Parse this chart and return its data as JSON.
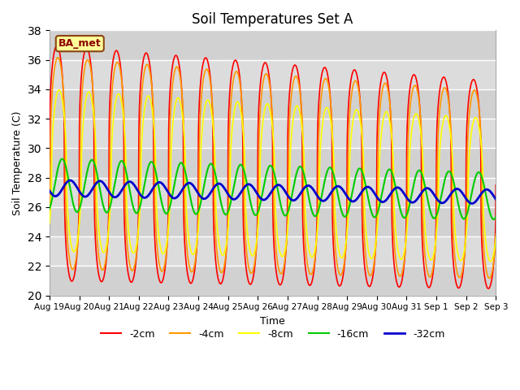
{
  "title": "Soil Temperatures Set A",
  "xlabel": "Time",
  "ylabel": "Soil Temperature (C)",
  "ylim": [
    20,
    38
  ],
  "yticks": [
    20,
    22,
    24,
    26,
    28,
    30,
    32,
    34,
    36,
    38
  ],
  "background_color": "#ffffff",
  "plot_bg_color": "#dcdcdc",
  "label_text": "BA_met",
  "series": [
    {
      "label": "-2cm",
      "color": "#ff0000",
      "lw": 1.2,
      "amplitude": 8.0,
      "mean": 29.0,
      "phase_shift": 0.0,
      "trend": -0.1,
      "sharpness": 3.0
    },
    {
      "label": "-4cm",
      "color": "#ff9900",
      "lw": 1.2,
      "amplitude": 7.2,
      "mean": 29.0,
      "phase_shift": 0.2,
      "trend": -0.1,
      "sharpness": 2.5
    },
    {
      "label": "-8cm",
      "color": "#ffff00",
      "lw": 1.2,
      "amplitude": 5.5,
      "mean": 28.5,
      "phase_shift": 0.45,
      "trend": -0.09,
      "sharpness": 2.0
    },
    {
      "label": "-16cm",
      "color": "#00cc00",
      "lw": 1.5,
      "amplitude": 1.8,
      "mean": 27.5,
      "phase_shift": 1.1,
      "trend": -0.05,
      "sharpness": 1.0
    },
    {
      "label": "-32cm",
      "color": "#0000cc",
      "lw": 2.0,
      "amplitude": 0.55,
      "mean": 27.3,
      "phase_shift": 2.8,
      "trend": -0.04,
      "sharpness": 1.0
    }
  ],
  "n_points": 2000,
  "tick_labels": [
    "Aug 19",
    "Aug 20",
    "Aug 21",
    "Aug 22",
    "Aug 23",
    "Aug 24",
    "Aug 25",
    "Aug 26",
    "Aug 27",
    "Aug 28",
    "Aug 29",
    "Aug 30",
    "Aug 31",
    "Sep 1",
    "Sep 2",
    "Sep 3"
  ],
  "tick_positions": [
    0,
    1,
    2,
    3,
    4,
    5,
    6,
    7,
    8,
    9,
    10,
    11,
    12,
    13,
    14,
    15
  ],
  "grid_color": "#ffffff",
  "legend_colors": [
    "#ff0000",
    "#ff9900",
    "#ffff00",
    "#00cc00",
    "#0000cc"
  ],
  "legend_labels": [
    "-2cm",
    "-4cm",
    "-8cm",
    "-16cm",
    "-32cm"
  ]
}
